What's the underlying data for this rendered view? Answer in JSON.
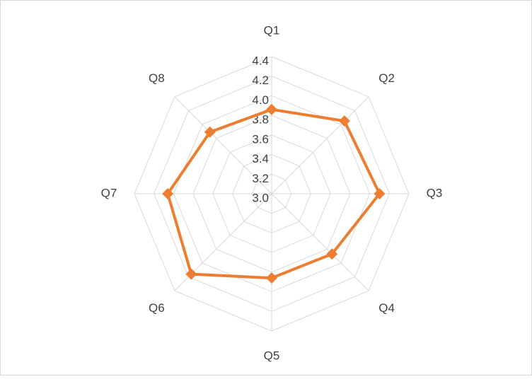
{
  "chart_data": {
    "type": "radar",
    "categories": [
      "Q1",
      "Q2",
      "Q3",
      "Q4",
      "Q5",
      "Q6",
      "Q7",
      "Q8"
    ],
    "values": [
      3.86,
      4.05,
      4.1,
      3.87,
      3.86,
      4.16,
      4.06,
      3.89
    ],
    "color": "#ed7d31",
    "rlim": [
      3.0,
      4.4
    ],
    "rticks": [
      {
        "value": 3.0,
        "label": "3.0"
      },
      {
        "value": 3.2,
        "label": "3.2"
      },
      {
        "value": 3.4,
        "label": "3.4"
      },
      {
        "value": 3.6,
        "label": "3.6"
      },
      {
        "value": 3.8,
        "label": "3.8"
      },
      {
        "value": 4.0,
        "label": "4.0"
      },
      {
        "value": 4.2,
        "label": "4.2"
      },
      {
        "value": 4.4,
        "label": "4.4"
      }
    ],
    "grid": true
  }
}
